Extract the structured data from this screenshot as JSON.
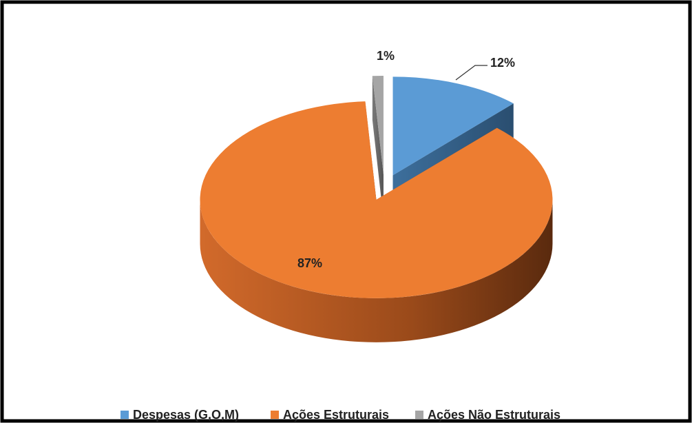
{
  "chart_data": {
    "type": "pie3d",
    "categories": [
      "Despesas (G,O,M)",
      "Ações Estruturais",
      "Ações Não Estruturais"
    ],
    "values": [
      12,
      87,
      1
    ],
    "value_labels": [
      "12%",
      "87%",
      "1%"
    ],
    "colors": [
      "#5b9bd5",
      "#ed7d31",
      "#a5a5a5"
    ],
    "legend": "bottom"
  }
}
